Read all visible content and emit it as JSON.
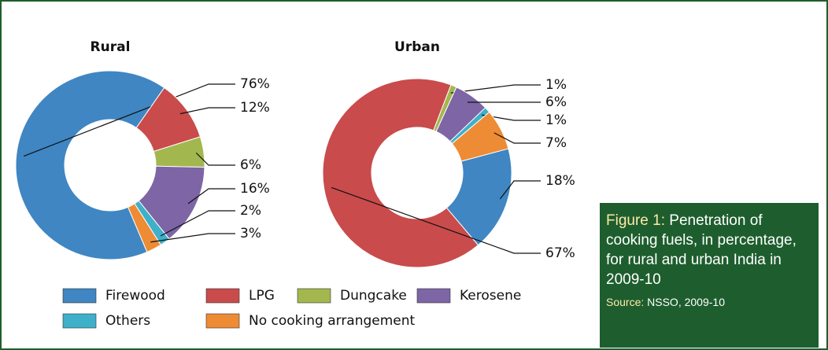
{
  "chart_data": [
    {
      "type": "pie",
      "title": "Rural",
      "categories": [
        "Firewood",
        "LPG",
        "Dungcake",
        "Kerosene",
        "Others",
        "No cooking arrangement"
      ],
      "colors": [
        "#3f86c3",
        "#c94b4b",
        "#a3b74f",
        "#7d65a6",
        "#3fb0c9",
        "#ee8b35"
      ],
      "values": [
        76,
        12,
        6,
        16,
        2,
        3
      ],
      "value_labels": [
        "76%",
        "12%",
        "6%",
        "16%",
        "2%",
        "3%"
      ]
    },
    {
      "type": "pie",
      "title": "Urban",
      "values": [
        18,
        67,
        1,
        6,
        1,
        7
      ],
      "value_labels": [
        "18%",
        "67%",
        "1%",
        "6%",
        "1%",
        "7%"
      ]
    }
  ],
  "caption": {
    "label": "Figure 1:",
    "text": "Penetration of cooking fuels, in percentage, for rural and urban India in 2009-10",
    "source_label": "Source:",
    "source": "NSSO, 2009-10"
  }
}
